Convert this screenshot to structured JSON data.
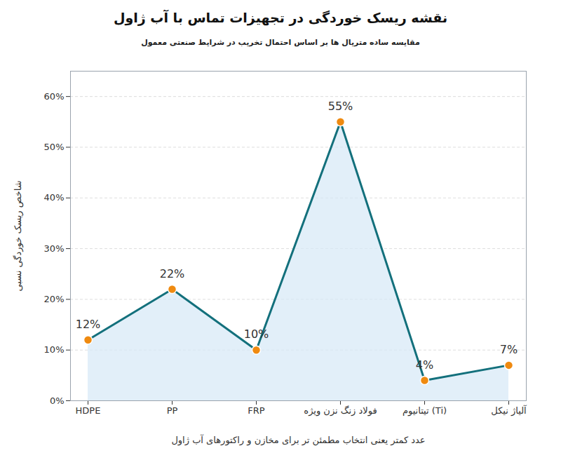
{
  "chart_data": {
    "type": "line",
    "title": "نقشه ریسک خوردگی در تجهیزات تماس با آب ژاول",
    "subtitle": "مقایسه ساده متریال ها بر اساس احتمال تخریب در شرایط صنعتی معمول",
    "x_label": "عدد کمتر یعنی انتخاب مطمئن تر برای مخازن و راکتورهای آب ژاول",
    "y_label": "شاخص ریسک خوردگی نسبی",
    "categories": [
      "HDPE",
      "PP",
      "FRP",
      "فولاد زنگ نزن ویژه",
      "تیتانیوم (Ti)",
      "آلیاژ نیکل"
    ],
    "values": [
      12,
      22,
      10,
      55,
      4,
      7
    ],
    "value_labels": [
      "12%",
      "22%",
      "10%",
      "55%",
      "4%",
      "7%"
    ],
    "data_labels": true,
    "color": "#13707c",
    "marker": "circle",
    "ylim": [
      0,
      65
    ],
    "yticks": [
      {
        "value": 0,
        "label": "0%"
      },
      {
        "value": 10,
        "label": "10%"
      },
      {
        "value": 20,
        "label": "20%"
      },
      {
        "value": 30,
        "label": "30%"
      },
      {
        "value": 40,
        "label": "40%"
      },
      {
        "value": 50,
        "label": "50%"
      },
      {
        "value": 60,
        "label": "60%"
      }
    ],
    "grid": true
  }
}
